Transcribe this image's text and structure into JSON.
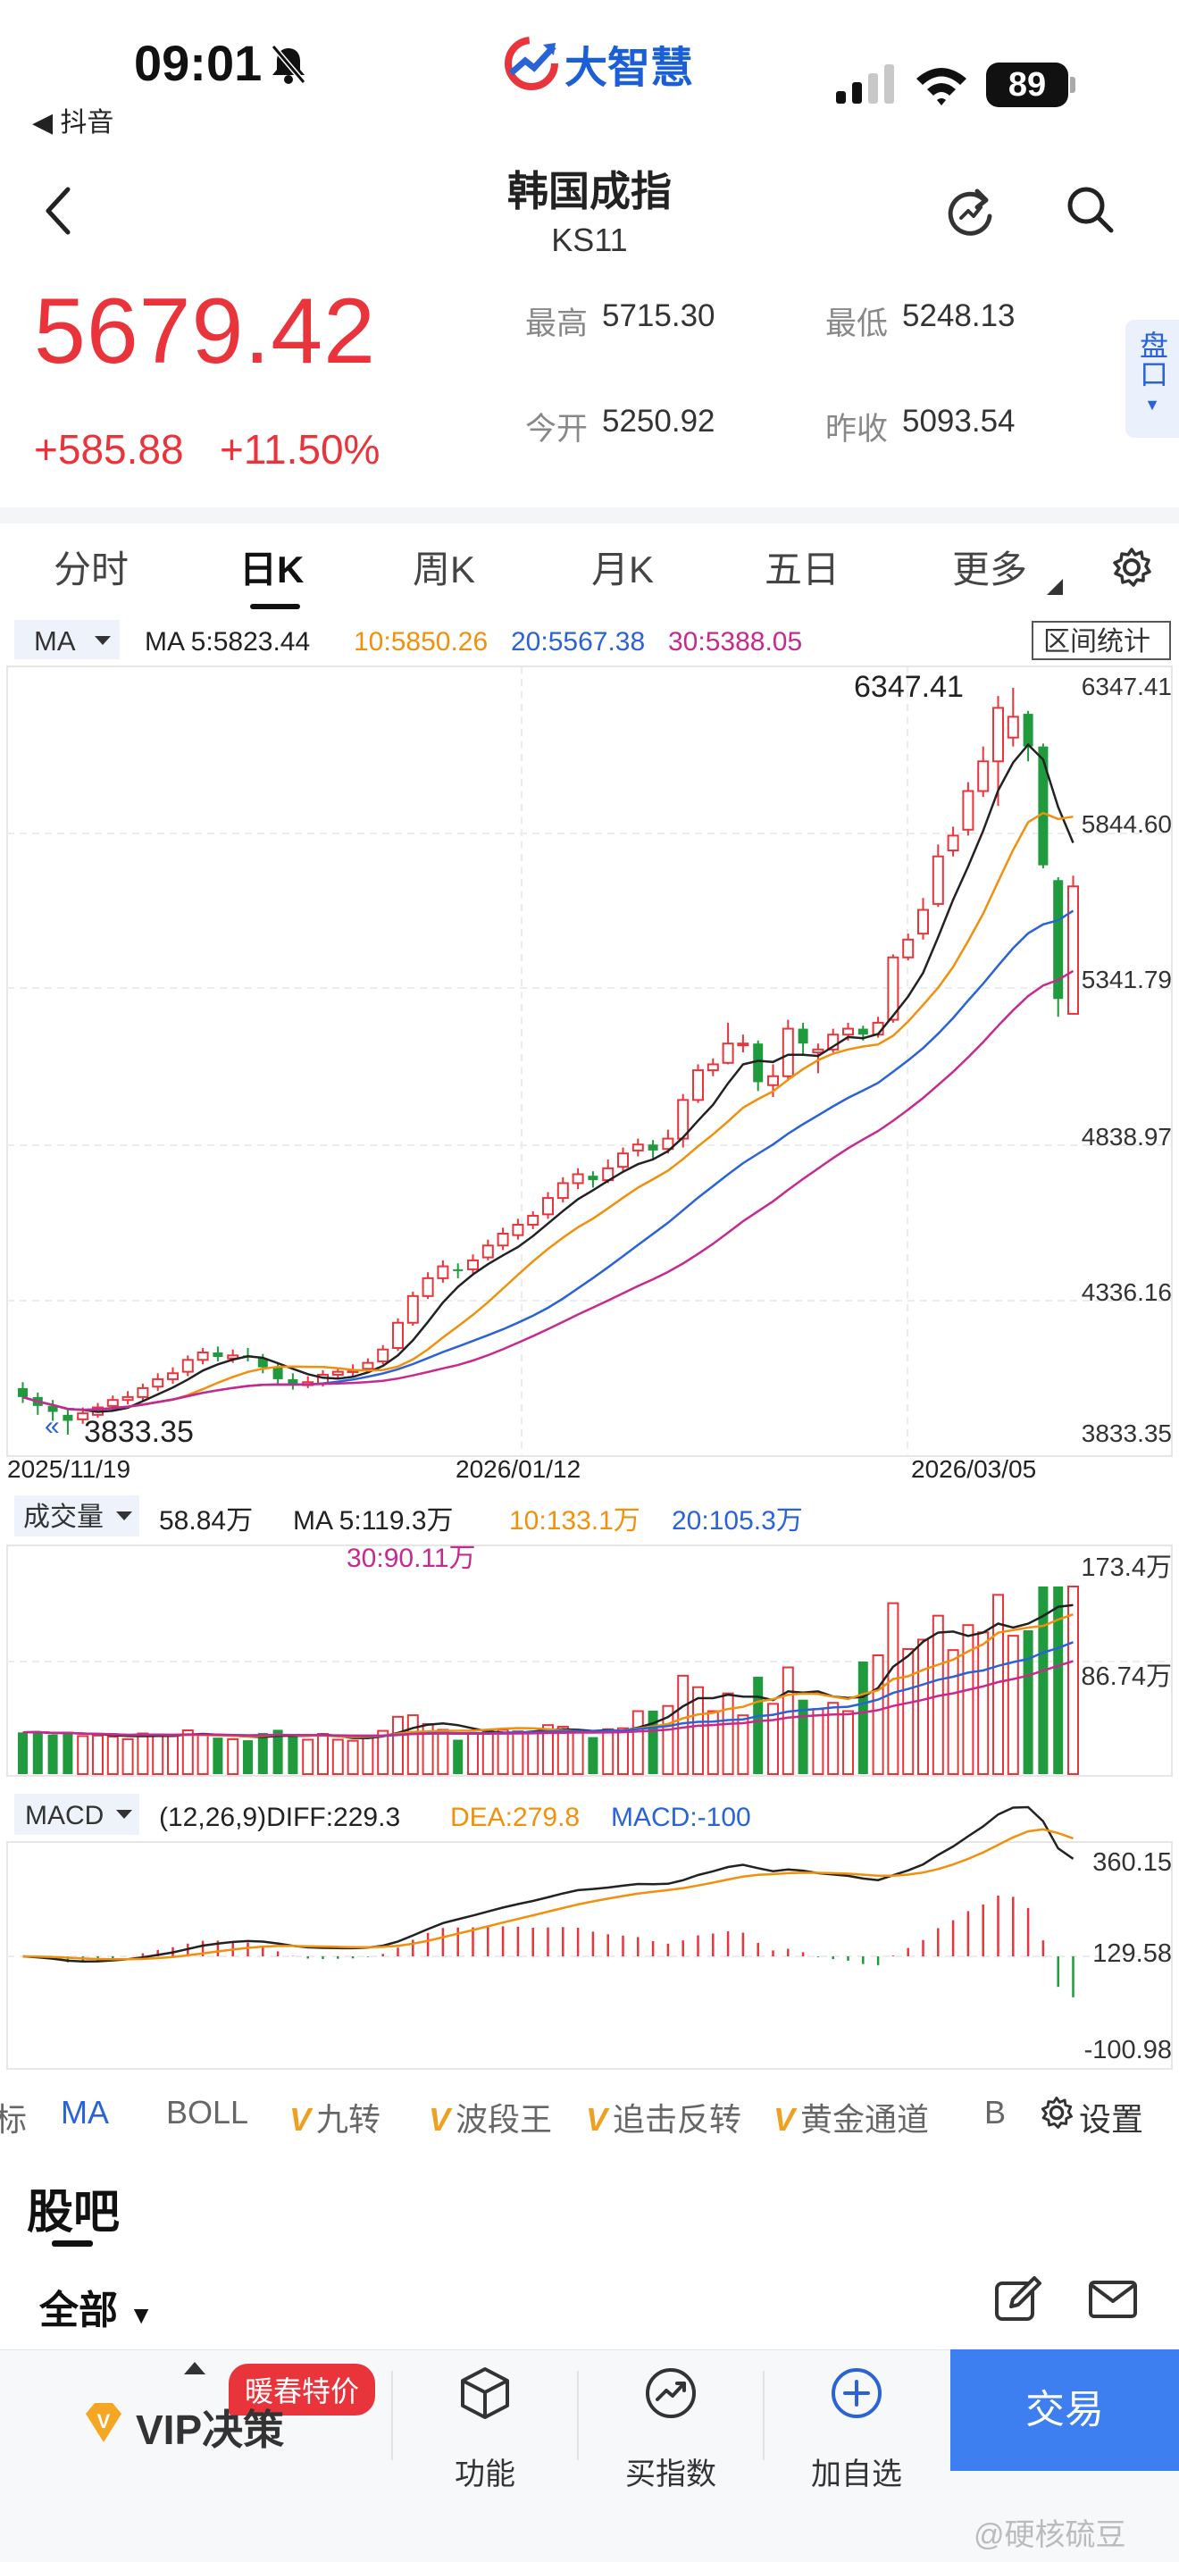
{
  "status_bar": {
    "time": "09:01",
    "back_app": "◀ 抖音",
    "brand": "大智慧",
    "battery": "89"
  },
  "header": {
    "title": "韩国成指",
    "subtitle": "KS11"
  },
  "quote": {
    "price": "5679.42",
    "change": "+585.88",
    "change_pct": "+11.50%",
    "high_label": "最高",
    "high": "5715.30",
    "low_label": "最低",
    "low": "5248.13",
    "open_label": "今开",
    "open": "5250.92",
    "prev_label": "昨收",
    "prev": "5093.54",
    "side_tab": "盘口"
  },
  "tabs": [
    "分时",
    "日K",
    "周K",
    "月K",
    "五日",
    "更多"
  ],
  "kline": {
    "ma_selector": "MA",
    "ma5": "MA 5:5823.44",
    "ma10": "10:5850.26",
    "ma20": "20:5567.38",
    "ma30": "30:5388.05",
    "range_btn": "区间统计",
    "price_labels": [
      "6347.41",
      "5844.60",
      "5341.79",
      "4838.97",
      "4336.16",
      "3833.35"
    ],
    "high_mark": "6347.41",
    "low_mark": "3833.35",
    "dates": [
      "2025/11/19",
      "2026/01/12",
      "2026/03/05"
    ]
  },
  "volume": {
    "selector": "成交量",
    "value": "58.84万",
    "ma5": "MA 5:119.3万",
    "ma10": "10:133.1万",
    "ma20": "20:105.3万",
    "ma30": "30:90.11万",
    "labels": [
      "173.4万",
      "86.74万"
    ]
  },
  "macd": {
    "selector": "MACD",
    "params": "(12,26,9)DIFF:229.3",
    "dea": "DEA:279.8",
    "macd": "MACD:-100",
    "labels": [
      "360.15",
      "129.58",
      "-100.98"
    ]
  },
  "indicators": [
    "标",
    "MA",
    "BOLL",
    "九转",
    "波段王",
    "追击反转",
    "黄金通道",
    "B",
    "设置"
  ],
  "guba": {
    "title": "股吧",
    "filter": "全部"
  },
  "bottom": {
    "promo": "暖春特价",
    "vip": "VIP决策",
    "func": "功能",
    "index": "买指数",
    "add": "加自选",
    "trade": "交易"
  },
  "watermark": "@硬核硫豆",
  "colors": {
    "up": "#e8343a",
    "down": "#1f9a3c",
    "ma5": "#222222",
    "ma10": "#f0900c",
    "ma20": "#2a63d8",
    "ma30": "#c72a8e",
    "accent": "#3d7ff0"
  },
  "chart_data": {
    "type": "candlestick",
    "candles": [
      [
        3990,
        3960,
        4010,
        3940
      ],
      [
        3960,
        3930,
        3975,
        3900
      ],
      [
        3930,
        3910,
        3950,
        3880
      ],
      [
        3900,
        3880,
        3920,
        3833.35
      ],
      [
        3885,
        3905,
        3925,
        3870
      ],
      [
        3900,
        3925,
        3940,
        3890
      ],
      [
        3930,
        3950,
        3965,
        3915
      ],
      [
        3950,
        3960,
        3980,
        3935
      ],
      [
        3960,
        3990,
        4005,
        3945
      ],
      [
        3995,
        4020,
        4040,
        3980
      ],
      [
        4020,
        4040,
        4060,
        4005
      ],
      [
        4045,
        4085,
        4100,
        4030
      ],
      [
        4085,
        4110,
        4125,
        4070
      ],
      [
        4110,
        4095,
        4130,
        4080
      ],
      [
        4090,
        4100,
        4120,
        4075
      ],
      [
        4100,
        4095,
        4125,
        4080
      ],
      [
        4090,
        4060,
        4105,
        4040
      ],
      [
        4060,
        4020,
        4075,
        4000
      ],
      [
        4020,
        4000,
        4040,
        3985
      ],
      [
        4000,
        4010,
        4030,
        3990
      ],
      [
        4005,
        4035,
        4050,
        3995
      ],
      [
        4035,
        4045,
        4060,
        4020
      ],
      [
        4045,
        4050,
        4070,
        4030
      ],
      [
        4055,
        4075,
        4090,
        4040
      ],
      [
        4080,
        4120,
        4135,
        4070
      ],
      [
        4125,
        4210,
        4225,
        4115
      ],
      [
        4210,
        4300,
        4315,
        4200
      ],
      [
        4300,
        4360,
        4380,
        4290
      ],
      [
        4360,
        4400,
        4420,
        4345
      ],
      [
        4390,
        4385,
        4410,
        4360
      ],
      [
        4390,
        4420,
        4440,
        4375
      ],
      [
        4430,
        4470,
        4490,
        4420
      ],
      [
        4470,
        4510,
        4530,
        4455
      ],
      [
        4505,
        4540,
        4560,
        4490
      ],
      [
        4540,
        4570,
        4585,
        4525
      ],
      [
        4575,
        4630,
        4650,
        4560
      ],
      [
        4630,
        4680,
        4700,
        4615
      ],
      [
        4680,
        4710,
        4730,
        4660
      ],
      [
        4705,
        4690,
        4720,
        4665
      ],
      [
        4690,
        4730,
        4760,
        4680
      ],
      [
        4735,
        4780,
        4800,
        4720
      ],
      [
        4790,
        4810,
        4830,
        4770
      ],
      [
        4810,
        4790,
        4825,
        4760
      ],
      [
        4795,
        4830,
        4860,
        4780
      ],
      [
        4830,
        4960,
        4980,
        4800
      ],
      [
        4960,
        5060,
        5080,
        4950
      ],
      [
        5060,
        5080,
        5100,
        5040
      ],
      [
        5085,
        5150,
        5220,
        5080
      ],
      [
        5150,
        5150,
        5180,
        5120
      ],
      [
        5150,
        5020,
        5160,
        4990
      ],
      [
        5010,
        5040,
        5080,
        4970
      ],
      [
        5040,
        5200,
        5230,
        5030
      ],
      [
        5200,
        5150,
        5220,
        5110
      ],
      [
        5120,
        5130,
        5150,
        5050
      ],
      [
        5130,
        5180,
        5200,
        5120
      ],
      [
        5180,
        5200,
        5220,
        5160
      ],
      [
        5200,
        5180,
        5210,
        5160
      ],
      [
        5180,
        5220,
        5240,
        5170
      ],
      [
        5230,
        5440,
        5450,
        5220
      ],
      [
        5440,
        5500,
        5520,
        5430
      ],
      [
        5520,
        5600,
        5640,
        5500
      ],
      [
        5620,
        5780,
        5820,
        5610
      ],
      [
        5800,
        5850,
        5880,
        5780
      ],
      [
        5870,
        6000,
        6030,
        5850
      ],
      [
        6000,
        6100,
        6150,
        5980
      ],
      [
        6100,
        6280,
        6320,
        5950
      ],
      [
        6180,
        6250,
        6347.41,
        6150
      ],
      [
        6260,
        6150,
        6270,
        6100
      ],
      [
        6150,
        5750,
        6160,
        5740
      ],
      [
        5700,
        5300,
        5710,
        5240
      ],
      [
        5250,
        5679,
        5715,
        5248
      ]
    ],
    "y_range": [
      3833.35,
      6347.41
    ]
  }
}
